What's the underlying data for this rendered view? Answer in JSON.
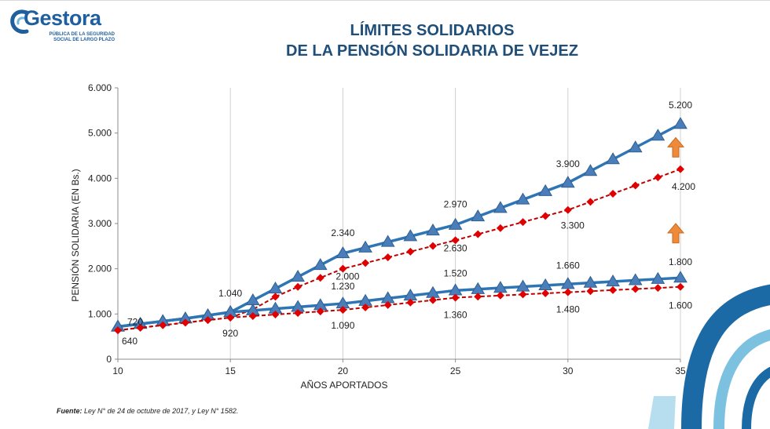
{
  "header": {
    "logo_name": "Gestora",
    "logo_line1": "PÚBLICA DE LA SEGURIDAD",
    "logo_line2": "SOCIAL DE LARGO PLAZO",
    "title_line1": "LÍMITES SOLIDARIOS",
    "title_line2": "DE LA PENSIÓN SOLIDARIA DE VEJEZ"
  },
  "footer": {
    "source_label": "Fuente:",
    "source_text": " Ley N° de 24 de octubre de 2017, y  Ley N° 1582."
  },
  "colors": {
    "title": "#1f4e79",
    "blue_line": "#2e75b6",
    "blue_marker": "#4a7ebb",
    "red_line": "#c00000",
    "red_marker": "#e00000",
    "arrow": "#ed8b3a",
    "deco_dark": "#1b6aa5",
    "deco_light": "#7cc2e0"
  },
  "chart_data": {
    "type": "line",
    "xlabel": "AÑOS APORTADOS",
    "ylabel": "PENSIÓN SOLIDARIA (EN Bs.)",
    "xlim": [
      10,
      35
    ],
    "ylim": [
      0,
      6000
    ],
    "x_ticks": [
      "10",
      "15",
      "20",
      "25",
      "30",
      "35"
    ],
    "y_ticks": [
      "0",
      "1.000",
      "2.000",
      "3.000",
      "4.000",
      "5.000",
      "6.000"
    ],
    "grid": "vertical",
    "x": [
      10,
      11,
      12,
      13,
      14,
      15,
      16,
      17,
      18,
      19,
      20,
      21,
      22,
      23,
      24,
      25,
      26,
      27,
      28,
      29,
      30,
      31,
      32,
      33,
      34,
      35
    ],
    "series": [
      {
        "style": "blue-triangle",
        "values": [
          720,
          780,
          840,
          900,
          970,
          1040,
          1300,
          1560,
          1820,
          2080,
          2340,
          2466,
          2592,
          2718,
          2844,
          2970,
          3156,
          3342,
          3528,
          3714,
          3900,
          4160,
          4420,
          4680,
          4940,
          5200
        ]
      },
      {
        "style": "red-diamond",
        "values": [
          640,
          696,
          752,
          808,
          864,
          920,
          1100,
          1380,
          1600,
          1800,
          2000,
          2126,
          2252,
          2378,
          2504,
          2630,
          2764,
          2898,
          3032,
          3166,
          3300,
          3480,
          3660,
          3840,
          4020,
          4200
        ]
      },
      {
        "style": "blue-triangle",
        "values": [
          720,
          780,
          840,
          900,
          970,
          1040,
          1078,
          1116,
          1154,
          1192,
          1230,
          1288,
          1346,
          1404,
          1462,
          1520,
          1548,
          1576,
          1604,
          1632,
          1660,
          1688,
          1716,
          1744,
          1772,
          1800
        ]
      },
      {
        "style": "red-diamond",
        "values": [
          640,
          696,
          752,
          808,
          864,
          920,
          954,
          988,
          1022,
          1056,
          1090,
          1144,
          1198,
          1252,
          1306,
          1360,
          1384,
          1408,
          1432,
          1456,
          1480,
          1504,
          1528,
          1552,
          1576,
          1600
        ]
      }
    ],
    "annotations": [
      {
        "text": "720",
        "x": 10,
        "y": 720
      },
      {
        "text": "640",
        "x": 10,
        "y": 640
      },
      {
        "text": "1.040",
        "x": 15,
        "y": 1040
      },
      {
        "text": "920",
        "x": 15,
        "y": 920
      },
      {
        "text": "2.340",
        "x": 20,
        "y": 2340
      },
      {
        "text": "2.000",
        "x": 20,
        "y": 2000
      },
      {
        "text": "1.230",
        "x": 20,
        "y": 1230
      },
      {
        "text": "1.090",
        "x": 20,
        "y": 1090
      },
      {
        "text": "2.970",
        "x": 25,
        "y": 2970
      },
      {
        "text": "2.630",
        "x": 25,
        "y": 2630
      },
      {
        "text": "1.520",
        "x": 25,
        "y": 1520
      },
      {
        "text": "1.360",
        "x": 25,
        "y": 1360
      },
      {
        "text": "3.900",
        "x": 30,
        "y": 3900
      },
      {
        "text": "3.300",
        "x": 30,
        "y": 3300
      },
      {
        "text": "1.660",
        "x": 30,
        "y": 1660
      },
      {
        "text": "1.480",
        "x": 30,
        "y": 1480
      },
      {
        "text": "5.200",
        "x": 35,
        "y": 5200
      },
      {
        "text": "4.200",
        "x": 35,
        "y": 4200
      },
      {
        "text": "1.800",
        "x": 35,
        "y": 1800
      },
      {
        "text": "1.600",
        "x": 35,
        "y": 1600
      }
    ]
  }
}
